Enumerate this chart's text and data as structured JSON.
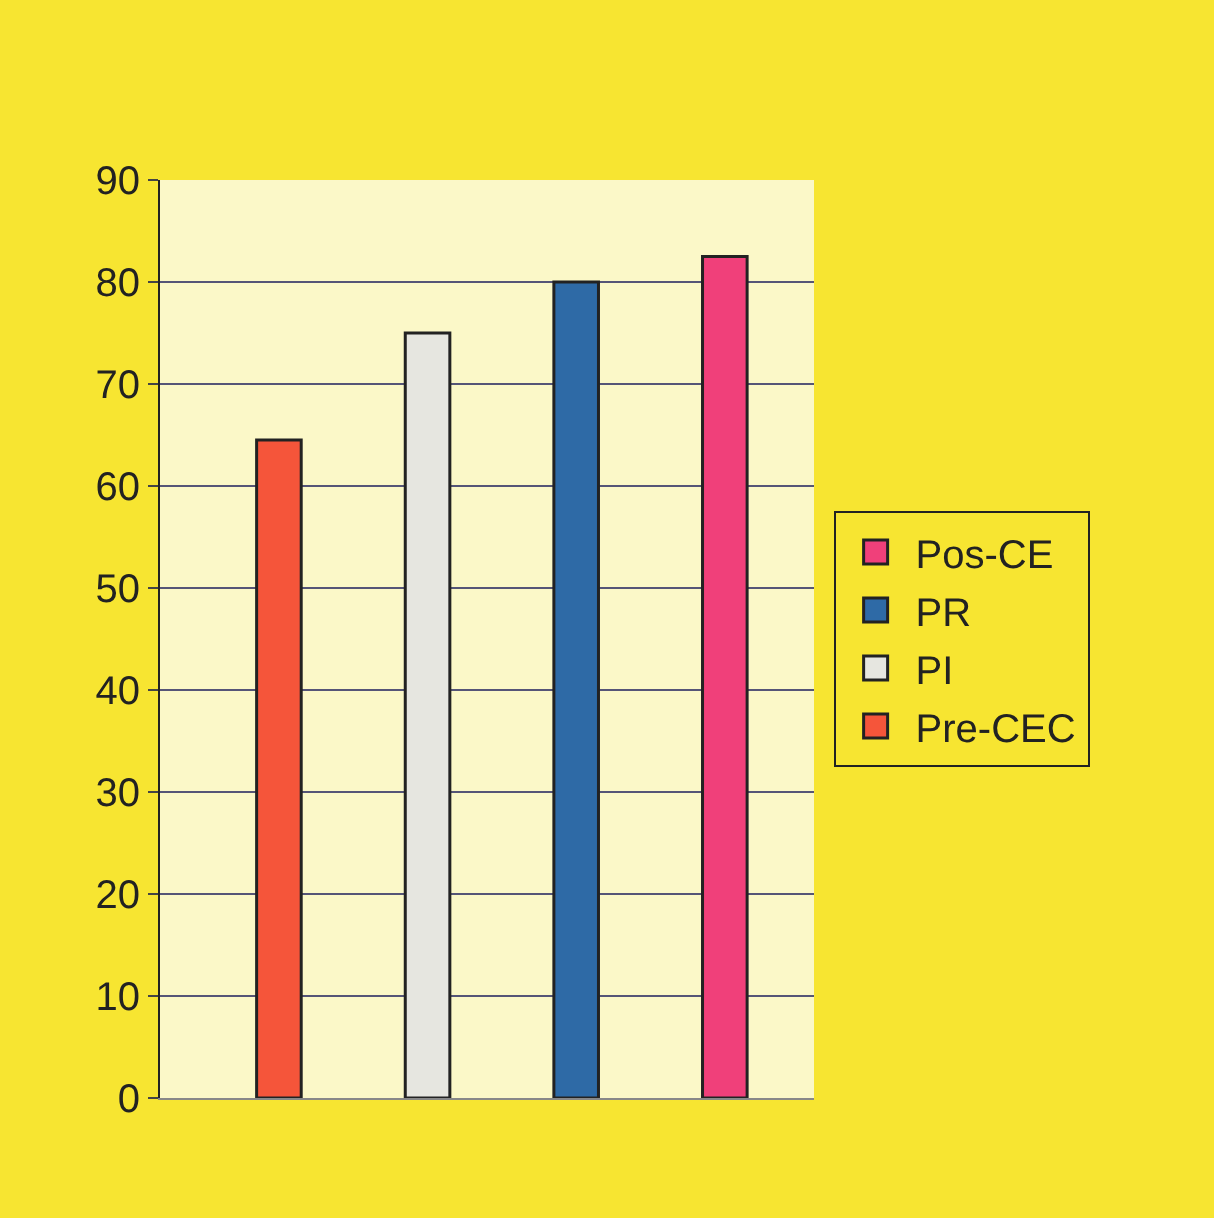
{
  "chart_data": {
    "type": "bar",
    "categories": [
      null,
      null,
      null,
      null
    ],
    "series": [
      {
        "name": "Pre-CEC",
        "color": "#f5553a",
        "values": [
          64.5,
          null,
          null,
          null
        ]
      },
      {
        "name": "PI",
        "color": "#e6e6e0",
        "values": [
          null,
          75,
          null,
          null
        ]
      },
      {
        "name": "PR",
        "color": "#2e6aa6",
        "values": [
          null,
          null,
          80,
          null
        ]
      },
      {
        "name": "Pos-CE",
        "color": "#f0407a",
        "values": [
          null,
          null,
          null,
          82.5
        ]
      }
    ],
    "ylim": [
      0,
      90
    ],
    "yticks": [
      0,
      10,
      20,
      30,
      40,
      50,
      60,
      70,
      80,
      90
    ],
    "grid": "y",
    "legend": "right"
  }
}
